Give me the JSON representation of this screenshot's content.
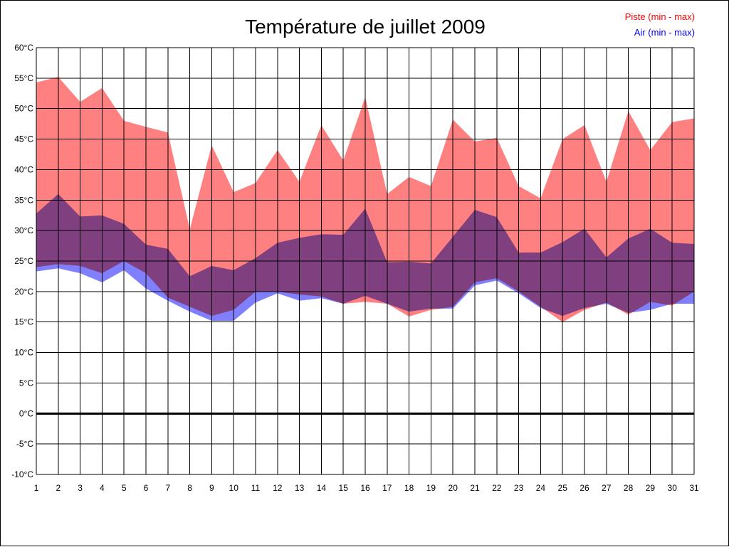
{
  "chart_data": {
    "type": "area",
    "title": "Température de juillet 2009",
    "xlabel": "",
    "ylabel": "",
    "x": [
      1,
      2,
      3,
      4,
      5,
      6,
      7,
      8,
      9,
      10,
      11,
      12,
      13,
      14,
      15,
      16,
      17,
      18,
      19,
      20,
      21,
      22,
      23,
      24,
      25,
      26,
      27,
      28,
      29,
      30,
      31
    ],
    "x_tick_labels": [
      "1",
      "2",
      "3",
      "4",
      "5",
      "6",
      "7",
      "8",
      "9",
      "10",
      "11",
      "12",
      "13",
      "14",
      "15",
      "16",
      "17",
      "18",
      "19",
      "20",
      "21",
      "22",
      "23",
      "24",
      "25",
      "26",
      "27",
      "28",
      "29",
      "30",
      "31"
    ],
    "ylim": [
      -10,
      60
    ],
    "y_ticks": [
      -10,
      -5,
      0,
      5,
      10,
      15,
      20,
      25,
      30,
      35,
      40,
      45,
      50,
      55,
      60
    ],
    "y_tick_labels": [
      "-10°C",
      "-5°C",
      "0°C",
      "5°C",
      "10°C",
      "15°C",
      "20°C",
      "25°C",
      "30°C",
      "35°C",
      "40°C",
      "45°C",
      "50°C",
      "55°C",
      "60°C"
    ],
    "grid": true,
    "zero_line": true,
    "legend_position": "top-right",
    "series": [
      {
        "name": "Piste (min - max)",
        "color": "#ff8080",
        "legend_color": "#ff0000",
        "min": [
          24.0,
          24.5,
          24.2,
          23.0,
          25.0,
          23.0,
          19.0,
          17.5,
          16.0,
          17.0,
          20.0,
          20.0,
          19.5,
          19.2,
          18.0,
          18.3,
          18.0,
          15.9,
          17.0,
          17.5,
          21.5,
          22.2,
          20.0,
          17.5,
          15.0,
          17.0,
          18.2,
          16.2,
          18.3,
          17.7,
          20.0
        ],
        "max": [
          54.3,
          55.2,
          51.1,
          53.4,
          48.0,
          47.0,
          46.1,
          30.2,
          44.0,
          36.3,
          37.8,
          43.2,
          38.0,
          47.3,
          41.5,
          51.9,
          36.0,
          38.8,
          37.3,
          48.2,
          44.6,
          45.2,
          37.3,
          35.3,
          45.0,
          47.3,
          38.0,
          49.6,
          43.2,
          47.8,
          48.4
        ]
      },
      {
        "name": "Air (min - max)",
        "color": "#8080ff",
        "legend_color": "#0000ff",
        "min": [
          23.3,
          23.8,
          23.0,
          21.5,
          23.5,
          20.5,
          18.5,
          16.7,
          15.2,
          15.2,
          18.2,
          19.7,
          18.5,
          18.9,
          18.0,
          19.3,
          18.0,
          16.7,
          17.2,
          17.2,
          21.0,
          21.8,
          19.7,
          17.3,
          16.0,
          17.3,
          18.0,
          16.5,
          17.0,
          18.0,
          18.0
        ],
        "max": [
          32.8,
          36.0,
          32.3,
          32.5,
          31.1,
          27.7,
          27.0,
          22.5,
          24.2,
          23.5,
          25.5,
          28.0,
          28.8,
          29.4,
          29.3,
          33.6,
          24.8,
          24.9,
          24.6,
          29.0,
          33.4,
          32.2,
          26.4,
          26.4,
          28.1,
          30.3,
          25.6,
          28.7,
          30.3,
          28.0,
          27.8
        ]
      }
    ]
  }
}
